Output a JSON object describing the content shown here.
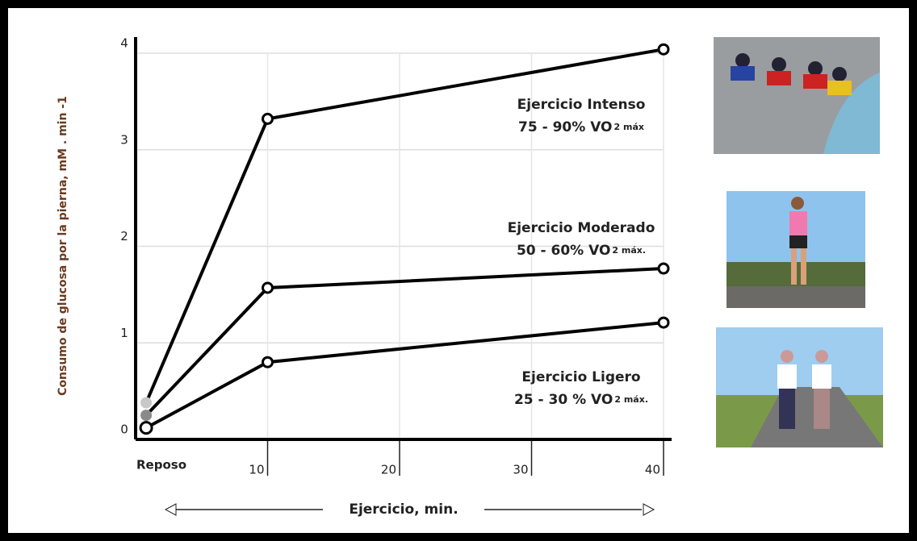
{
  "chart_data": {
    "type": "line",
    "y_label": "Consumo de glucosa por la pierna, mM . min -1",
    "x_label": "Ejercicio, min.",
    "x": [
      0.8,
      10,
      40
    ],
    "xlim": [
      0,
      40
    ],
    "ylim": [
      0,
      4
    ],
    "xticks": [
      {
        "value": 0,
        "label": "Reposo"
      },
      10,
      20,
      30,
      40
    ],
    "yticks": [
      0,
      1,
      2,
      3,
      4
    ],
    "grid": true,
    "series": [
      {
        "name": "Ejercicio Intenso",
        "detail": "75 - 90% VO",
        "detail_sub": "2 máx",
        "color": "#000000",
        "rest_color": "#c8c8c8",
        "values": [
          0.38,
          3.32,
          4.04
        ]
      },
      {
        "name": "Ejercicio Moderado",
        "detail": "50 - 60% VO",
        "detail_sub": "2 máx.",
        "color": "#000000",
        "rest_color": "#8a8a8a",
        "values": [
          0.25,
          1.57,
          1.77
        ]
      },
      {
        "name": "Ejercicio Ligero",
        "detail": "25 - 30 % VO",
        "detail_sub": "2 máx.",
        "color": "#000000",
        "rest_color": "#000000",
        "values": [
          0.12,
          0.8,
          1.21
        ]
      }
    ]
  }
}
